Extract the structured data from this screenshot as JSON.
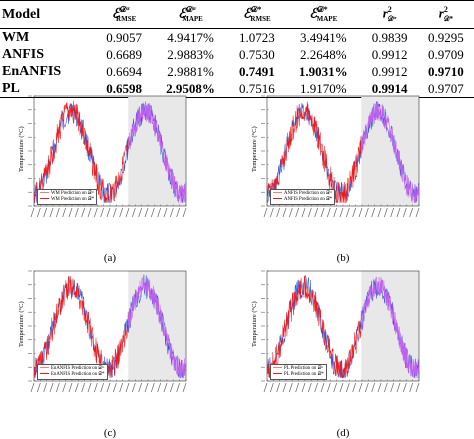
{
  "table": {
    "headers": [
      "Model",
      "E D tr RMSE",
      "E D tr MAPE",
      "E D* RMSE",
      "E D* MAPE",
      "r2 D tr",
      "r2 D*"
    ],
    "header_parts": {
      "E": "ℰ",
      "r2": "r²",
      "Dtr": "𝒟ᵗʳ",
      "Dstar": "𝒟*",
      "RMSE": "RMSE",
      "MAPE": "MAPE"
    },
    "rows": [
      {
        "model": "WM",
        "cells": [
          "0.9057",
          "4.9417%",
          "1.0723",
          "3.4941%",
          "0.9839",
          "0.9295"
        ],
        "bold": [
          false,
          false,
          false,
          false,
          false,
          false
        ]
      },
      {
        "model": "ANFIS",
        "cells": [
          "0.6689",
          "2.9883%",
          "0.7530",
          "2.2648%",
          "0.9912",
          "0.9709"
        ],
        "bold": [
          false,
          false,
          false,
          false,
          false,
          false
        ]
      },
      {
        "model": "EnANFIS",
        "cells": [
          "0.6694",
          "2.9881%",
          "0.7491",
          "1.9031%",
          "0.9912",
          "0.9710"
        ],
        "bold": [
          false,
          false,
          true,
          true,
          false,
          true
        ]
      },
      {
        "model": "PL",
        "cells": [
          "0.6598",
          "2.9508%",
          "0.7516",
          "1.9170%",
          "0.9914",
          "0.9707"
        ],
        "bold": [
          true,
          true,
          false,
          false,
          true,
          false
        ]
      }
    ]
  },
  "panels": [
    {
      "label": "(a)",
      "ylabel": "Temperature (°C)",
      "legend": [
        "WM Prediction on 𝒟ᵗʳ",
        "WM Prediction on 𝒟*"
      ]
    },
    {
      "label": "(b)",
      "ylabel": "Temperature (°C)",
      "legend": [
        "ANFIS Prediction on 𝒟ᵗʳ",
        "ANFIS Prediction on 𝒟*"
      ]
    },
    {
      "label": "(c)",
      "ylabel": "Temperature (°C)",
      "legend": [
        "EnANFIS Prediction on 𝒟ᵗʳ",
        "EnANFIS Prediction on 𝒟*"
      ]
    },
    {
      "label": "(d)",
      "ylabel": "Temperature (°C)",
      "legend": [
        "PL Prediction on 𝒟ᵗʳ",
        "PL Prediction on 𝒟*"
      ]
    }
  ],
  "colors": {
    "train_line": "#ee1c1c",
    "test_line": "#c060ee",
    "actual_line": "#2a4fd6",
    "test_region": "#e8e8e8",
    "legend_train": "#f08080",
    "legend_test": "#ee1c1c"
  }
}
